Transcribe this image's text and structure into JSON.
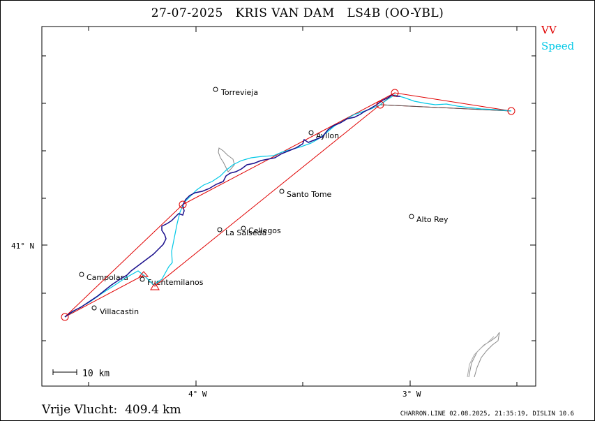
{
  "title": "27-07-2025   KRIS VAN DAM   LS4B (OO-YBL)",
  "legend": {
    "vv": "VV",
    "speed": "Speed"
  },
  "colors": {
    "track": "#1a0f8c",
    "speed": "#00c8e6",
    "triangle": "#e00000",
    "vv": "#e00000",
    "closing": "#555555"
  },
  "axes": {
    "lat_label": "41° N",
    "lon_labels": [
      "4° W",
      "3° W"
    ]
  },
  "scale_bar": "10 km",
  "places": [
    {
      "name": "Torrevieja"
    },
    {
      "name": "Ayllon"
    },
    {
      "name": "Santo Tome"
    },
    {
      "name": "Alto Rey"
    },
    {
      "name": "Cellegos"
    },
    {
      "name": "La Salseda"
    },
    {
      "name": "Campolara"
    },
    {
      "name": "Fuentemilanos"
    },
    {
      "name": "Villacastin"
    }
  ],
  "distance_label": "Vrije Vlucht:",
  "distance_value": "409.4 km",
  "footer": "CHARRON.LINE 02.08.2025, 21:35:19, DISLIN 10.6"
}
